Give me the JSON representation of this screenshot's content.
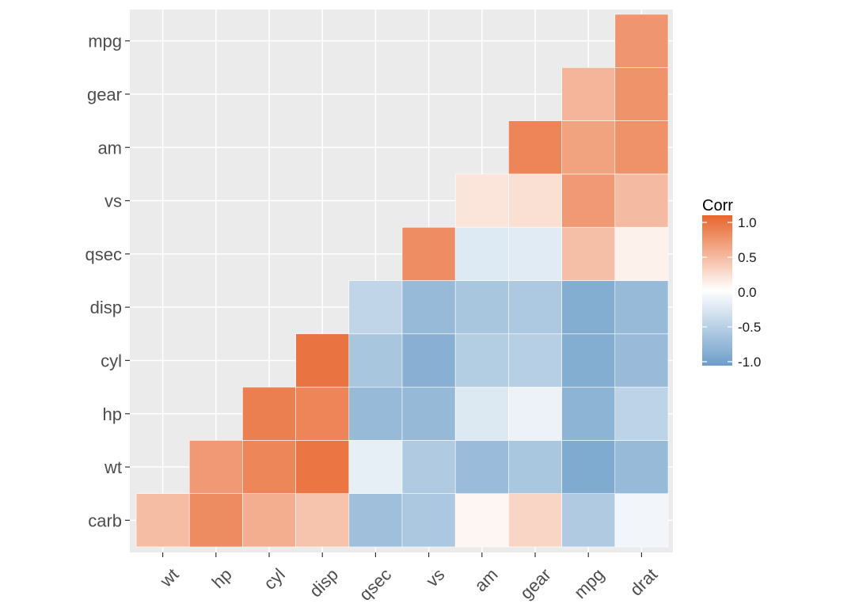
{
  "chart_data": {
    "type": "heatmap",
    "title": "",
    "x_labels": [
      "wt",
      "hp",
      "cyl",
      "disp",
      "qsec",
      "vs",
      "am",
      "gear",
      "mpg",
      "drat"
    ],
    "y_labels": [
      "carb",
      "wt",
      "hp",
      "cyl",
      "disp",
      "qsec",
      "vs",
      "am",
      "gear",
      "mpg"
    ],
    "cells": [
      {
        "x": "wt",
        "y": "carb",
        "value": 0.43
      },
      {
        "x": "hp",
        "y": "carb",
        "value": 0.75
      },
      {
        "x": "cyl",
        "y": "carb",
        "value": 0.53
      },
      {
        "x": "disp",
        "y": "carb",
        "value": 0.39
      },
      {
        "x": "qsec",
        "y": "carb",
        "value": -0.66
      },
      {
        "x": "vs",
        "y": "carb",
        "value": -0.57
      },
      {
        "x": "am",
        "y": "carb",
        "value": 0.06
      },
      {
        "x": "gear",
        "y": "carb",
        "value": 0.27
      },
      {
        "x": "mpg",
        "y": "carb",
        "value": -0.55
      },
      {
        "x": "drat",
        "y": "carb",
        "value": -0.09
      },
      {
        "x": "hp",
        "y": "wt",
        "value": 0.66
      },
      {
        "x": "cyl",
        "y": "wt",
        "value": 0.78
      },
      {
        "x": "disp",
        "y": "wt",
        "value": 0.89
      },
      {
        "x": "qsec",
        "y": "wt",
        "value": -0.17
      },
      {
        "x": "vs",
        "y": "wt",
        "value": -0.55
      },
      {
        "x": "am",
        "y": "wt",
        "value": -0.69
      },
      {
        "x": "gear",
        "y": "wt",
        "value": -0.58
      },
      {
        "x": "mpg",
        "y": "wt",
        "value": -0.87
      },
      {
        "x": "drat",
        "y": "wt",
        "value": -0.71
      },
      {
        "x": "cyl",
        "y": "hp",
        "value": 0.83
      },
      {
        "x": "disp",
        "y": "hp",
        "value": 0.79
      },
      {
        "x": "qsec",
        "y": "hp",
        "value": -0.71
      },
      {
        "x": "vs",
        "y": "hp",
        "value": -0.72
      },
      {
        "x": "am",
        "y": "hp",
        "value": -0.24
      },
      {
        "x": "gear",
        "y": "hp",
        "value": -0.13
      },
      {
        "x": "mpg",
        "y": "hp",
        "value": -0.78
      },
      {
        "x": "drat",
        "y": "hp",
        "value": -0.45
      },
      {
        "x": "disp",
        "y": "cyl",
        "value": 0.9
      },
      {
        "x": "qsec",
        "y": "cyl",
        "value": -0.59
      },
      {
        "x": "vs",
        "y": "cyl",
        "value": -0.81
      },
      {
        "x": "am",
        "y": "cyl",
        "value": -0.52
      },
      {
        "x": "gear",
        "y": "cyl",
        "value": -0.49
      },
      {
        "x": "mpg",
        "y": "cyl",
        "value": -0.85
      },
      {
        "x": "drat",
        "y": "cyl",
        "value": -0.7
      },
      {
        "x": "qsec",
        "y": "disp",
        "value": -0.43
      },
      {
        "x": "vs",
        "y": "disp",
        "value": -0.71
      },
      {
        "x": "am",
        "y": "disp",
        "value": -0.59
      },
      {
        "x": "gear",
        "y": "disp",
        "value": -0.56
      },
      {
        "x": "mpg",
        "y": "disp",
        "value": -0.85
      },
      {
        "x": "drat",
        "y": "disp",
        "value": -0.71
      },
      {
        "x": "vs",
        "y": "qsec",
        "value": 0.74
      },
      {
        "x": "am",
        "y": "qsec",
        "value": -0.23
      },
      {
        "x": "gear",
        "y": "qsec",
        "value": -0.21
      },
      {
        "x": "mpg",
        "y": "qsec",
        "value": 0.42
      },
      {
        "x": "drat",
        "y": "qsec",
        "value": 0.09
      },
      {
        "x": "am",
        "y": "vs",
        "value": 0.17
      },
      {
        "x": "gear",
        "y": "vs",
        "value": 0.21
      },
      {
        "x": "mpg",
        "y": "vs",
        "value": 0.66
      },
      {
        "x": "drat",
        "y": "vs",
        "value": 0.44
      },
      {
        "x": "gear",
        "y": "am",
        "value": 0.79
      },
      {
        "x": "mpg",
        "y": "am",
        "value": 0.6
      },
      {
        "x": "drat",
        "y": "am",
        "value": 0.71
      },
      {
        "x": "mpg",
        "y": "gear",
        "value": 0.48
      },
      {
        "x": "drat",
        "y": "gear",
        "value": 0.7
      },
      {
        "x": "drat",
        "y": "mpg",
        "value": 0.68
      }
    ],
    "color_scale": {
      "low": "#6d9ec9",
      "mid": "#ffffff",
      "high": "#e8652c",
      "limits": [
        -1,
        1
      ]
    },
    "legend": {
      "title": "Corr",
      "position": "right",
      "ticks": [
        1.0,
        0.5,
        0.0,
        -0.5,
        -1.0
      ],
      "tick_labels": [
        "1.0",
        "0.5",
        "0.0",
        "-0.5",
        "-1.0"
      ]
    },
    "panel_background": "#ebebeb",
    "grid_color": "#ffffff"
  }
}
